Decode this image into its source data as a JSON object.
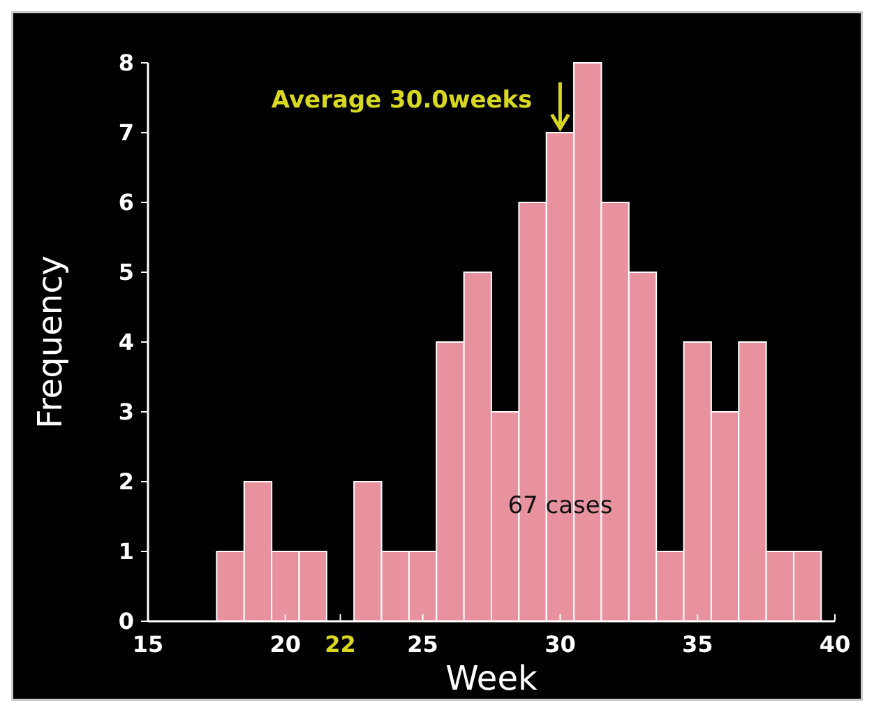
{
  "chart_data": {
    "type": "histogram",
    "xlabel": "Week",
    "ylabel": "Frequency",
    "bins": [
      17.5,
      18.5,
      19.5,
      20.5,
      21.5,
      22.5,
      23.5,
      24.5,
      25.5,
      26.5,
      27.5,
      28.5,
      29.5,
      30.5,
      31.5,
      32.5,
      33.5,
      34.5,
      35.5,
      36.5,
      37.5,
      38.5,
      39.5
    ],
    "values": [
      1,
      2,
      1,
      1,
      0,
      2,
      1,
      1,
      4,
      5,
      3,
      6,
      7,
      8,
      6,
      5,
      1,
      4,
      3,
      4,
      1,
      1
    ],
    "color": "#e8929f",
    "xlim": [
      15,
      40
    ],
    "xticks": [
      15,
      20,
      22,
      25,
      30,
      35,
      40
    ],
    "ylim": [
      0,
      8
    ],
    "yticks": [
      0,
      1,
      2,
      3,
      4,
      5,
      6,
      7,
      8
    ],
    "grid": false,
    "annotations": [
      {
        "text": "Average 30.0weeks",
        "x": 30,
        "y": 7
      },
      "67 cases"
    ]
  }
}
